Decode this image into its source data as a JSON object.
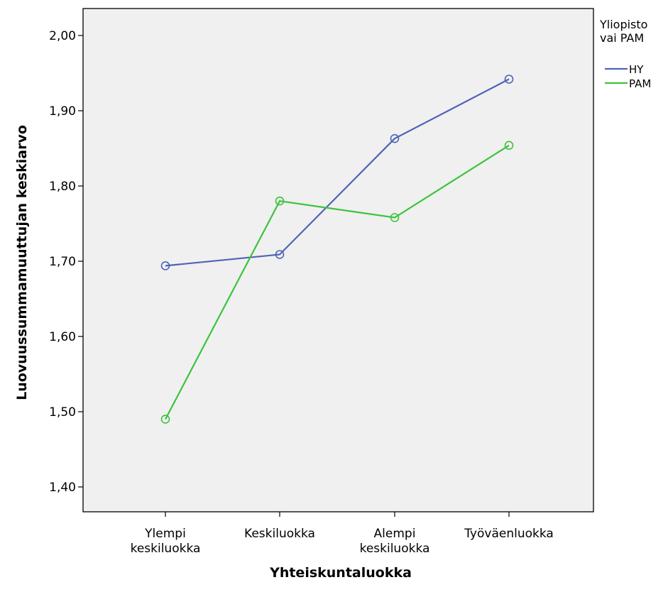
{
  "chart_data": {
    "type": "line",
    "xlabel": "Yhteiskuntaluokka",
    "ylabel": "Luovuussummamuuttujan keskiarvo",
    "categories": [
      [
        "Ylempi",
        "keskiluokka"
      ],
      [
        "Keskiluokka"
      ],
      [
        "Alempi",
        "keskiluokka"
      ],
      [
        "Työväenluokka"
      ]
    ],
    "ylim": [
      1.38,
      2.03
    ],
    "yticks": [
      1.4,
      1.5,
      1.6,
      1.7,
      1.8,
      1.9,
      2.0
    ],
    "ytick_labels": [
      "1,40",
      "1,50",
      "1,60",
      "1,70",
      "1,80",
      "1,90",
      "2,00"
    ],
    "grid": false,
    "background": "#f0f0f0",
    "legend": {
      "title": [
        "Yliopisto",
        "vai PAM"
      ],
      "placement": "right"
    },
    "series": [
      {
        "name": "HY",
        "color": "#4f63b8",
        "values": [
          1.694,
          1.709,
          1.863,
          1.942
        ]
      },
      {
        "name": "PAM",
        "color": "#3cc33c",
        "values": [
          1.49,
          1.78,
          1.758,
          1.854
        ]
      }
    ]
  }
}
